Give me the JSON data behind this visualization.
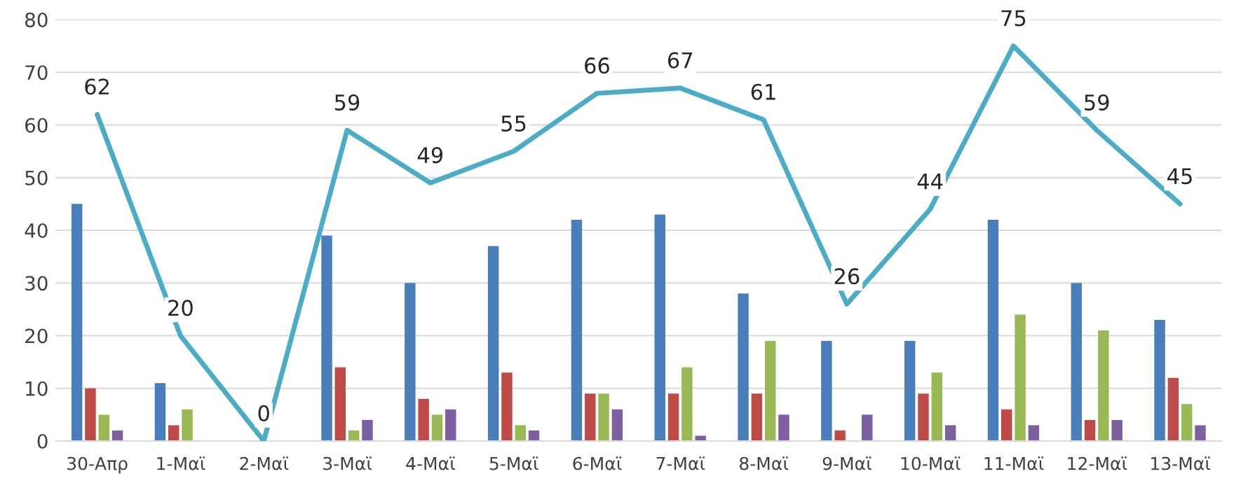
{
  "chart_data": {
    "type": "bar",
    "categories": [
      "30-Απρ",
      "1-Μαϊ",
      "2-Μαϊ",
      "3-Μαϊ",
      "4-Μαϊ",
      "5-Μαϊ",
      "6-Μαϊ",
      "7-Μαϊ",
      "8-Μαϊ",
      "9-Μαϊ",
      "10-Μαϊ",
      "11-Μαϊ",
      "12-Μαϊ",
      "13-Μαϊ"
    ],
    "series": [
      {
        "color": "#4a7ebb",
        "values": [
          45,
          11,
          0,
          39,
          30,
          37,
          42,
          43,
          28,
          19,
          19,
          42,
          30,
          23
        ]
      },
      {
        "color": "#be4b48",
        "values": [
          10,
          3,
          0,
          14,
          8,
          13,
          9,
          9,
          9,
          2,
          9,
          6,
          4,
          12
        ]
      },
      {
        "color": "#98b954",
        "values": [
          5,
          6,
          0,
          2,
          5,
          3,
          9,
          14,
          19,
          0,
          13,
          24,
          21,
          7
        ]
      },
      {
        "color": "#7d60a0",
        "values": [
          2,
          0,
          0,
          4,
          6,
          2,
          6,
          1,
          5,
          5,
          3,
          3,
          4,
          3
        ]
      },
      {
        "type": "line",
        "color": "#4bacc6",
        "values": [
          62,
          20,
          0,
          59,
          49,
          55,
          66,
          67,
          61,
          26,
          44,
          75,
          59,
          45
        ],
        "value_labels": [
          "62",
          "20",
          "0",
          "59",
          "49",
          "55",
          "66",
          "67",
          "61",
          "26",
          "44",
          "75",
          "59",
          "45"
        ]
      }
    ],
    "ylim": [
      0,
      80
    ],
    "yticks": [
      0,
      10,
      20,
      30,
      40,
      50,
      60,
      70,
      80
    ],
    "grid": "y",
    "legend": false
  }
}
